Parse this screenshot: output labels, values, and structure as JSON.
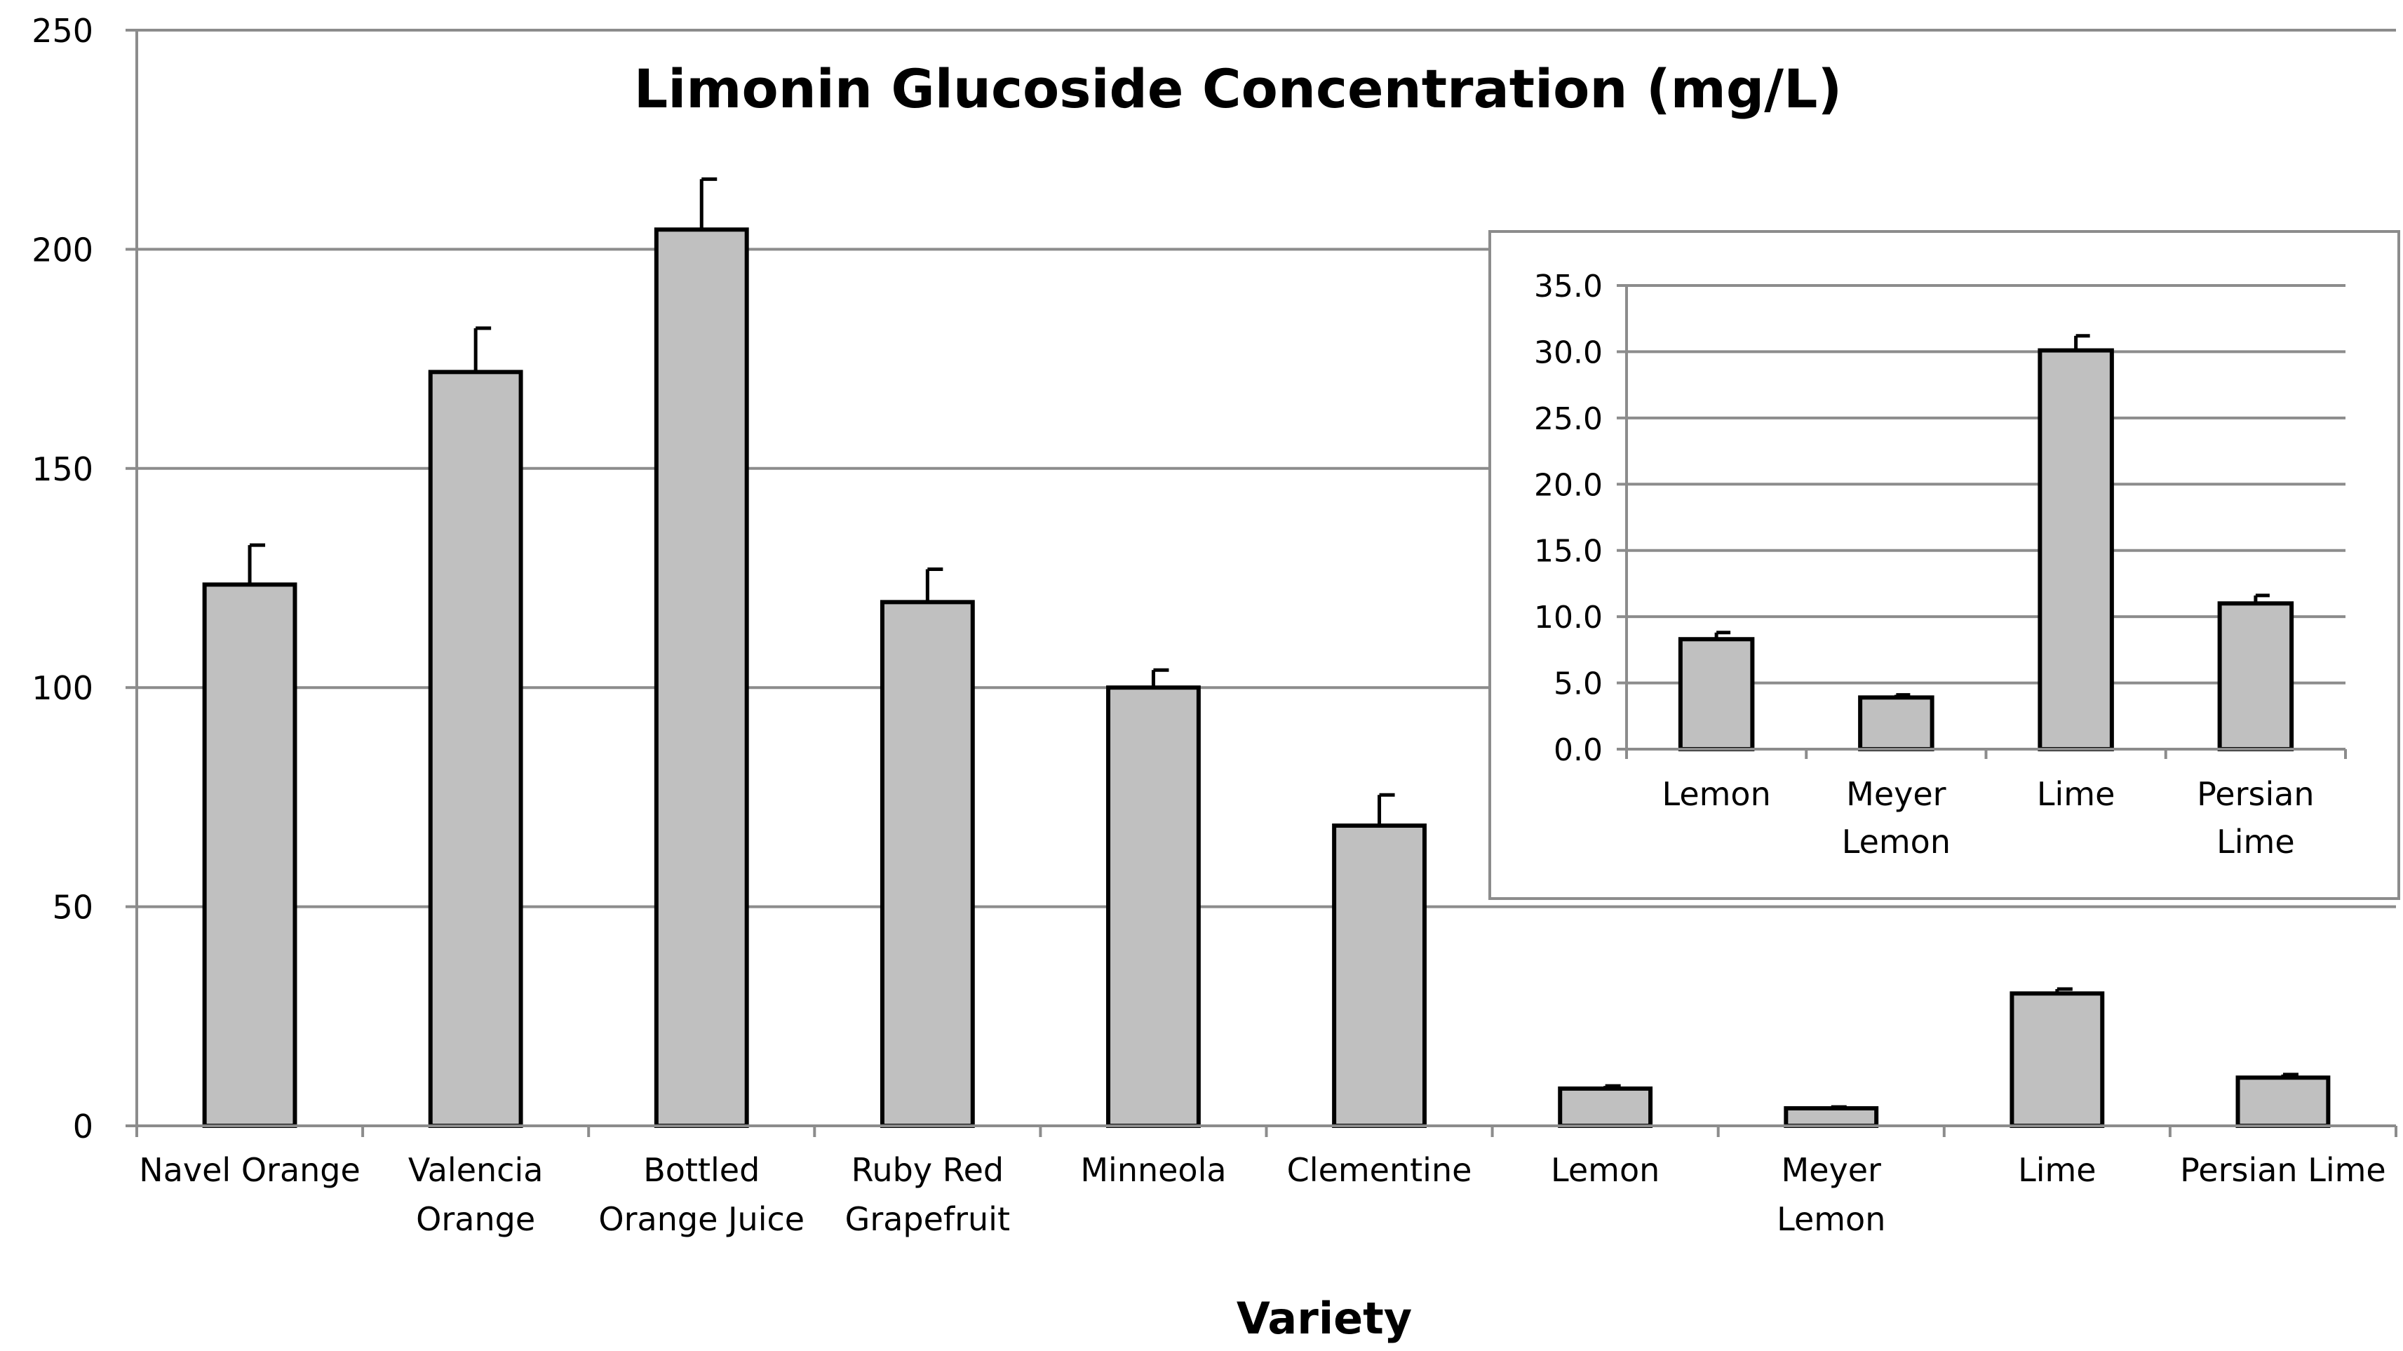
{
  "chart_data": [
    {
      "type": "bar",
      "title": "Limonin Glucoside Concentration (mg/L)",
      "xlabel": "Variety",
      "ylabel": "",
      "ylim": [
        0,
        250
      ],
      "yticks": [
        "0",
        "50",
        "100",
        "150",
        "200",
        "250"
      ],
      "ytick_values": [
        0,
        50,
        100,
        150,
        200,
        250
      ],
      "grid": true,
      "categories": [
        [
          "Navel Orange"
        ],
        [
          "Valencia",
          "Orange"
        ],
        [
          "Bottled",
          "Orange Juice"
        ],
        [
          "Ruby Red",
          "Grapefruit"
        ],
        [
          "Minneola"
        ],
        [
          "Clementine"
        ],
        [
          "Lemon"
        ],
        [
          "Meyer",
          "Lemon"
        ],
        [
          "Lime"
        ],
        [
          "Persian Lime"
        ]
      ],
      "values": [
        123.5,
        172,
        204.5,
        119.5,
        100,
        68.5,
        8.5,
        4,
        30.2,
        11
      ],
      "errors": [
        9,
        10,
        11.5,
        7.5,
        4,
        7,
        0.6,
        0.3,
        1,
        0.7
      ],
      "bar_color": "#c0c0c0"
    },
    {
      "type": "bar",
      "title": "",
      "xlabel": "",
      "ylabel": "",
      "ylim": [
        0,
        35
      ],
      "yticks": [
        "0.0",
        "5.0",
        "10.0",
        "15.0",
        "20.0",
        "25.0",
        "30.0",
        "35.0"
      ],
      "ytick_values": [
        0,
        5,
        10,
        15,
        20,
        25,
        30,
        35
      ],
      "grid": true,
      "categories": [
        [
          "Lemon"
        ],
        [
          "Meyer",
          "Lemon"
        ],
        [
          "Lime"
        ],
        [
          "Persian",
          "Lime"
        ]
      ],
      "values": [
        8.3,
        3.9,
        30.1,
        11
      ],
      "errors": [
        0.5,
        0.2,
        1.1,
        0.6
      ],
      "bar_color": "#c0c0c0"
    }
  ]
}
